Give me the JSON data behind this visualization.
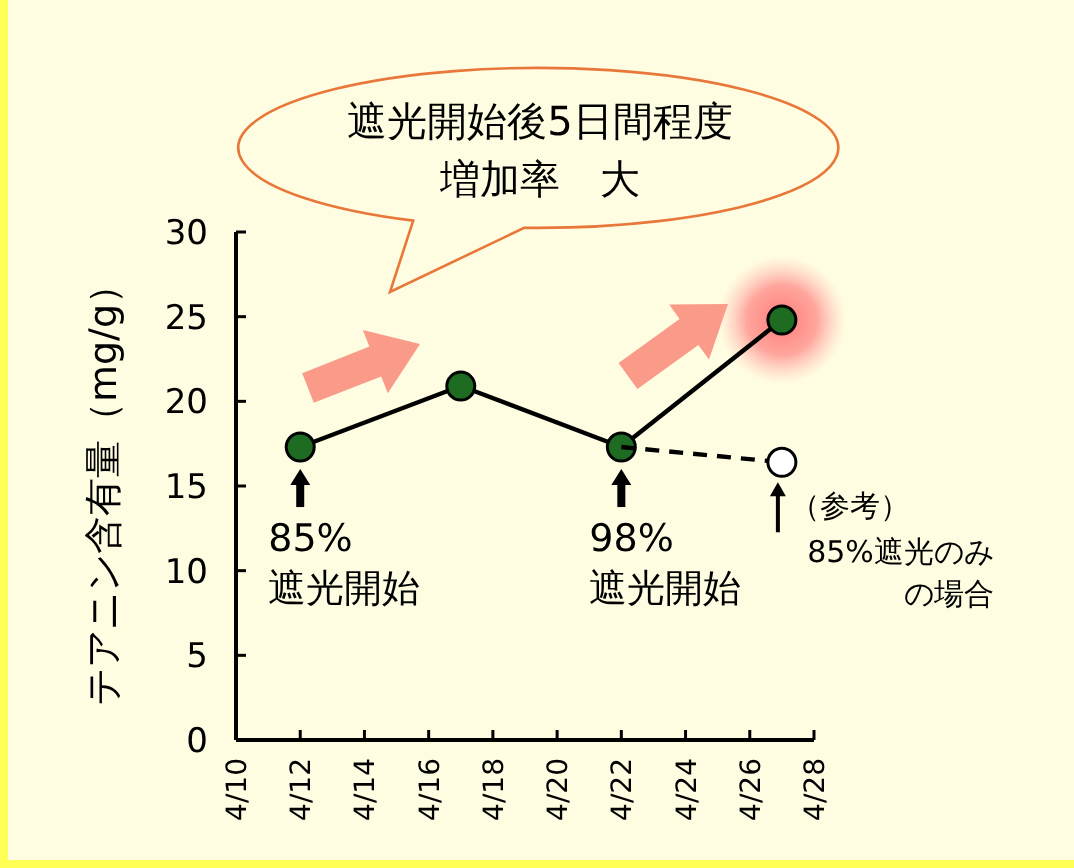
{
  "chart_data": {
    "type": "line",
    "ylabel": "テアニン含有量（mg/g）",
    "annotations": [
      "遮光開始後5日間程度",
      "増加率　大",
      {
        "text": "85%",
        "x": "--04-12",
        "y": 17.3
      },
      "遮光開始",
      {
        "text": "98%",
        "x": "--04-22",
        "y": 17.3
      },
      "遮光開始",
      {
        "text": "（参考）",
        "x": "--04-27",
        "y": 16.4
      },
      {
        "text": "85%遮光のみ",
        "x": "--04-27",
        "y": 16.4
      },
      "の場合"
    ],
    "series": [
      {
        "x": [
          "--04-12",
          "--04-17",
          "--04-22",
          "--04-27"
        ],
        "values": [
          17.3,
          20.9,
          17.3,
          24.8
        ],
        "color": "#1e6b22",
        "line_style": "solid"
      },
      {
        "x": [
          "--04-22",
          "--04-27"
        ],
        "values": [
          17.3,
          16.4
        ],
        "color": "#000000",
        "line_style": "dashed"
      }
    ],
    "marker": "circle",
    "grid": false,
    "xlim": [
      "--04-10",
      "--04-28"
    ],
    "xticks": [
      {
        "value": "--04-10",
        "label": "4/10"
      },
      {
        "value": "--04-12",
        "label": "4/12"
      },
      {
        "value": "--04-14",
        "label": "4/14"
      },
      {
        "value": "--04-16",
        "label": "4/16"
      },
      {
        "value": "--04-18",
        "label": "4/18"
      },
      {
        "value": "--04-20",
        "label": "4/20"
      },
      {
        "value": "--04-22",
        "label": "4/22"
      },
      {
        "value": "--04-24",
        "label": "4/24"
      },
      {
        "value": "--04-26",
        "label": "4/26"
      },
      {
        "value": "--04-28",
        "label": "4/28"
      }
    ],
    "ylim": [
      0,
      30
    ],
    "yticks": [
      0,
      5,
      10,
      15,
      20,
      25,
      30
    ]
  }
}
